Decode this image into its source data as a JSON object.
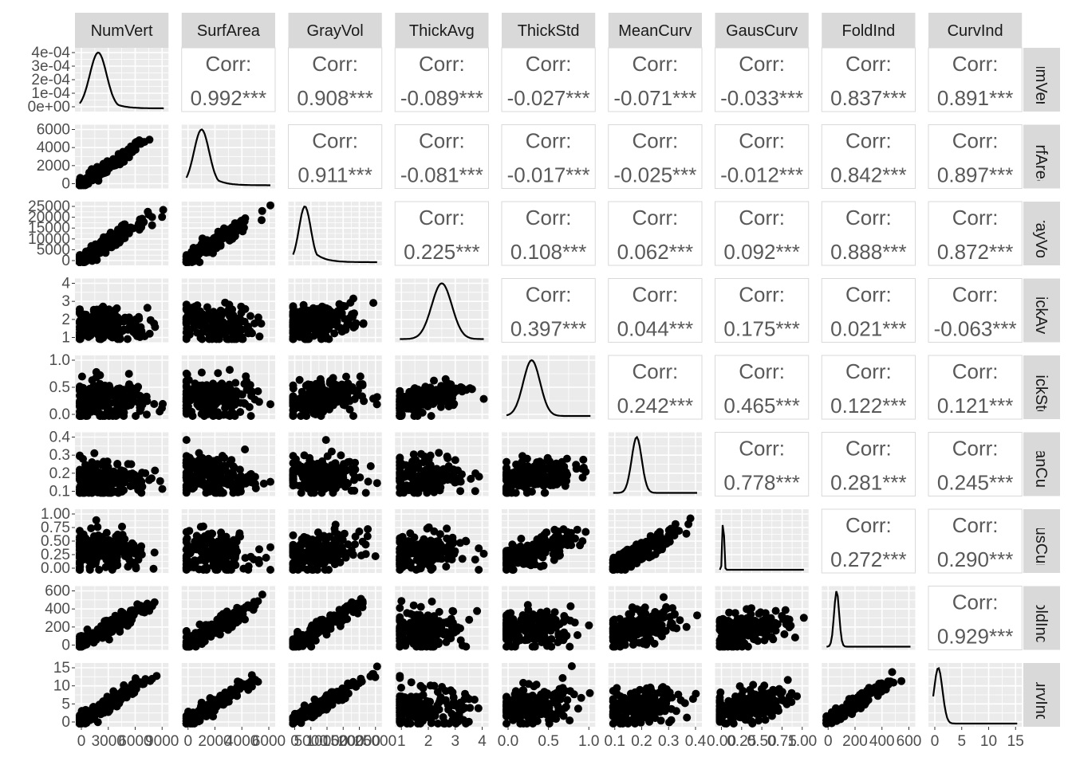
{
  "chart_data": {
    "type": "scatter-matrix",
    "title": "",
    "variables": [
      "NumVert",
      "SurfArea",
      "GrayVol",
      "ThickAvg",
      "ThickStd",
      "MeanCurv",
      "GausCurv",
      "FoldInd",
      "CurvInd"
    ],
    "corr_label": "Corr:",
    "correlations": [
      [
        "",
        "0.992***",
        "0.908***",
        "-0.089***",
        "-0.027***",
        "-0.071***",
        "-0.033***",
        "0.837***",
        "0.891***"
      ],
      [
        "",
        "",
        "0.911***",
        "-0.081***",
        "-0.017***",
        "-0.025***",
        "-0.012***",
        "0.842***",
        "0.897***"
      ],
      [
        "",
        "",
        "",
        "0.225***",
        "0.108***",
        "0.062***",
        "0.092***",
        "0.888***",
        "0.872***"
      ],
      [
        "",
        "",
        "",
        "",
        "0.397***",
        "0.044***",
        "0.175***",
        "0.021***",
        "-0.063***"
      ],
      [
        "",
        "",
        "",
        "",
        "",
        "0.242***",
        "0.465***",
        "0.122***",
        "0.121***"
      ],
      [
        "",
        "",
        "",
        "",
        "",
        "",
        "0.778***",
        "0.281***",
        "0.245***"
      ],
      [
        "",
        "",
        "",
        "",
        "",
        "",
        "",
        "0.272***",
        "0.290***"
      ],
      [
        "",
        "",
        "",
        "",
        "",
        "",
        "",
        "",
        "0.929***"
      ],
      [
        "",
        "",
        "",
        "",
        "",
        "",
        "",
        "",
        ""
      ]
    ],
    "y_ticks": [
      [
        "4e-04",
        "3e-04",
        "2e-04",
        "1e-04",
        "0e+00"
      ],
      [
        "6000",
        "4000",
        "2000",
        "0"
      ],
      [
        "25000",
        "20000",
        "15000",
        "10000",
        "5000",
        "0"
      ],
      [
        "4",
        "3",
        "2",
        "1"
      ],
      [
        "1.0",
        "0.5",
        "0.0"
      ],
      [
        "0.4",
        "0.3",
        "0.2",
        "0.1"
      ],
      [
        "1.00",
        "0.75",
        "0.50",
        "0.25",
        "0.00"
      ],
      [
        "600",
        "400",
        "200",
        "0"
      ],
      [
        "15",
        "10",
        "5",
        "0"
      ]
    ],
    "x_ticks": [
      [
        "0",
        "3000",
        "6000",
        "9000"
      ],
      [
        "0",
        "2000",
        "4000",
        "6000"
      ],
      [
        "0",
        "5000",
        "10000",
        "15000",
        "20000",
        "25000"
      ],
      [
        "1",
        "2",
        "3",
        "4"
      ],
      [
        "0.0",
        "0.5",
        "1.0"
      ],
      [
        "0.1",
        "0.2",
        "0.3",
        "0.4"
      ],
      [
        "0.00",
        "0.25",
        "0.50",
        "0.75",
        "1.00"
      ],
      [
        "0",
        "200",
        "400",
        "600"
      ],
      [
        "0",
        "5",
        "10",
        "15"
      ]
    ],
    "axis_ranges": [
      [
        0,
        11000
      ],
      [
        0,
        7000
      ],
      [
        0,
        25000
      ],
      [
        0.8,
        4.4
      ],
      [
        0,
        1.4
      ],
      [
        0.02,
        0.45
      ],
      [
        0,
        1.0
      ],
      [
        -50,
        650
      ],
      [
        0,
        19
      ]
    ],
    "grid": true,
    "colors": {
      "panel_bg": "#ebebeb",
      "grid_major": "#ffffff",
      "strip_bg": "#d9d9d9",
      "points": "#000000",
      "corr_text": "#595959",
      "corr_border": "#d9d9d9"
    }
  }
}
